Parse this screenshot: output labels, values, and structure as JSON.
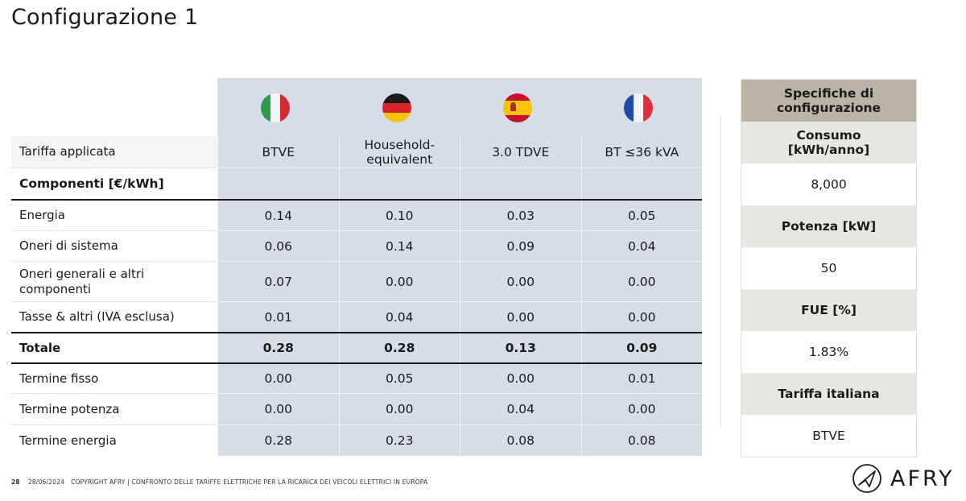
{
  "slide": {
    "title": "Configurazione 1"
  },
  "table": {
    "tariff_label": "Tariffa applicata",
    "countries": [
      {
        "flag": "italy-flag",
        "tariff": "BTVE"
      },
      {
        "flag": "germany-flag",
        "tariff": "Household-equivalent"
      },
      {
        "flag": "spain-flag",
        "tariff": "3.0 TDVE"
      },
      {
        "flag": "france-flag",
        "tariff": "BT ≤36 kVA"
      }
    ],
    "components_label": "Componenti [€/kWh]",
    "rows": [
      {
        "label": "Energia",
        "values": [
          "0.14",
          "0.10",
          "0.03",
          "0.05"
        ]
      },
      {
        "label": "Oneri di sistema",
        "values": [
          "0.06",
          "0.14",
          "0.09",
          "0.04"
        ]
      },
      {
        "label": "Oneri generali e altri componenti",
        "values": [
          "0.07",
          "0.00",
          "0.00",
          "0.00"
        ]
      },
      {
        "label": "Tasse & altri (IVA esclusa)",
        "values": [
          "0.01",
          "0.04",
          "0.00",
          "0.00"
        ]
      },
      {
        "label": "Totale",
        "values": [
          "0.28",
          "0.28",
          "0.13",
          "0.09"
        ]
      },
      {
        "label": "Termine fisso",
        "values": [
          "0.00",
          "0.05",
          "0.00",
          "0.01"
        ]
      },
      {
        "label": "Termine potenza",
        "values": [
          "0.00",
          "0.00",
          "0.04",
          "0.00"
        ]
      },
      {
        "label": "Termine energia",
        "values": [
          "0.28",
          "0.23",
          "0.08",
          "0.08"
        ]
      }
    ]
  },
  "specs": {
    "title": "Specifiche di configurazione",
    "items": [
      {
        "key": "Consumo [kWh/anno]",
        "value": "8,000"
      },
      {
        "key": "Potenza [kW]",
        "value": "50"
      },
      {
        "key": "FUE [%]",
        "value": "1.83%"
      },
      {
        "key": "Tariffa italiana",
        "value": "BTVE"
      }
    ]
  },
  "footer": {
    "page": "28",
    "date": "28/06/2024",
    "text": "COPYRIGHT AFRY | CONFRONTO DELLE TARIFFE ELETTRICHE PER LA RICARICA DEI VEICOLI ELETTRICI IN EUROPA"
  },
  "logo": {
    "text": "AFRY",
    "icon": "afry-logo-icon"
  },
  "colors": {
    "country_column_bg": "#d6dde8",
    "spec_title_bg": "#bdb3a5",
    "spec_key_bg": "#e8e6e1"
  }
}
